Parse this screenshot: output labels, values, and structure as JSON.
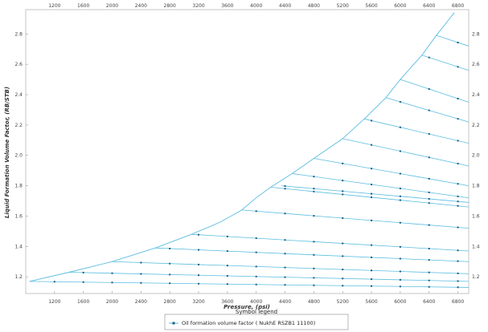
{
  "chart_data": {
    "type": "line",
    "xlabel": "Pressure, (psi)",
    "ylabel": "Liquid Formation Volume Factor, (RB/STB)",
    "xlim": [
      800,
      6950
    ],
    "ylim": [
      1.09,
      2.96
    ],
    "x_ticks": [
      "1200",
      "1600",
      "2000",
      "2400",
      "2800",
      "3200",
      "3600",
      "4000",
      "4400",
      "4800",
      "5200",
      "5600",
      "6000",
      "6400",
      "6800"
    ],
    "y_ticks": [
      "1.2",
      "1.4",
      "1.6",
      "1.8",
      "2.0",
      "2.2",
      "2.4",
      "2.6",
      "2.8"
    ],
    "color": "#5bbde0",
    "grid": false,
    "legend_position": "bottom-center",
    "legend": {
      "title": "Symbol legend",
      "entries": [
        "Oil formation volume factor ( NukhE  RSZB1  11100)"
      ]
    },
    "saturation_curve": {
      "x": [
        850,
        1400,
        2000,
        2600,
        3100,
        3500,
        3800,
        4000,
        4200,
        4500,
        4800,
        5200,
        5500,
        5800,
        6000,
        6300,
        6500,
        6650,
        6750
      ],
      "y": [
        1.17,
        1.23,
        1.3,
        1.39,
        1.48,
        1.56,
        1.64,
        1.72,
        1.79,
        1.88,
        1.98,
        2.11,
        2.24,
        2.38,
        2.5,
        2.66,
        2.79,
        2.88,
        2.94
      ]
    },
    "series": [
      {
        "bubble_point": [
          850,
          1.17
        ],
        "end": [
          6950,
          1.13
        ]
      },
      {
        "bubble_point": [
          1400,
          1.23
        ],
        "end": [
          6950,
          1.17
        ]
      },
      {
        "bubble_point": [
          2000,
          1.3
        ],
        "end": [
          6950,
          1.22
        ]
      },
      {
        "bubble_point": [
          2600,
          1.39
        ],
        "end": [
          6950,
          1.3
        ]
      },
      {
        "bubble_point": [
          3100,
          1.48
        ],
        "end": [
          6950,
          1.37
        ]
      },
      {
        "bubble_point": [
          3800,
          1.64
        ],
        "end": [
          6950,
          1.52
        ]
      },
      {
        "bubble_point": [
          4200,
          1.79
        ],
        "end": [
          6950,
          1.66
        ]
      },
      {
        "bubble_point": [
          4350,
          1.8
        ],
        "end": [
          6950,
          1.69
        ]
      },
      {
        "bubble_point": [
          4500,
          1.88
        ],
        "end": [
          6950,
          1.72
        ]
      },
      {
        "bubble_point": [
          4800,
          1.98
        ],
        "end": [
          6950,
          1.8
        ]
      },
      {
        "bubble_point": [
          5200,
          2.11
        ],
        "end": [
          6950,
          1.93
        ]
      },
      {
        "bubble_point": [
          5500,
          2.24
        ],
        "end": [
          6950,
          2.08
        ]
      },
      {
        "bubble_point": [
          5800,
          2.38
        ],
        "end": [
          6950,
          2.22
        ]
      },
      {
        "bubble_point": [
          6000,
          2.5
        ],
        "end": [
          6950,
          2.35
        ]
      },
      {
        "bubble_point": [
          6300,
          2.66
        ],
        "end": [
          6950,
          2.56
        ]
      },
      {
        "bubble_point": [
          6500,
          2.79
        ],
        "end": [
          6950,
          2.72
        ]
      }
    ]
  }
}
